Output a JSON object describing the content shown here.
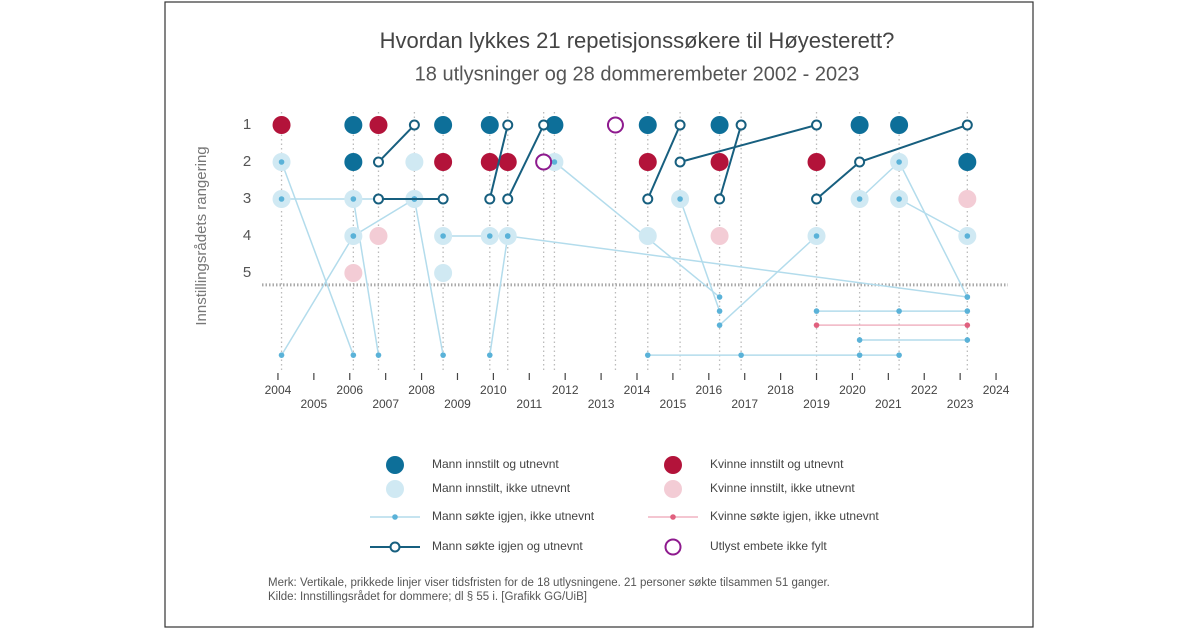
{
  "chart_data": {
    "type": "dot-timeline",
    "title": "Hvordan lykkes 21 repetisjonssøkere til Høyesterett?",
    "subtitle": "18 utlysninger og 28 dommerembeter 2002 - 2023",
    "y_label": "Innstillingsrådets rangering",
    "xlim": [
      2003.5,
      2024.5
    ],
    "xticks": [
      2004,
      2005,
      2006,
      2007,
      2008,
      2009,
      2010,
      2011,
      2012,
      2013,
      2014,
      2015,
      2016,
      2017,
      2018,
      2019,
      2020,
      2021,
      2022,
      2023,
      2024
    ],
    "ylim": [
      0.5,
      7.6
    ],
    "yticks": [
      1,
      2,
      3,
      4,
      5
    ],
    "deadlines": [
      2004.1,
      2006.1,
      2006.8,
      2007.8,
      2008.6,
      2009.9,
      2010.4,
      2011.4,
      2011.7,
      2013.4,
      2014.3,
      2015.2,
      2016.3,
      2016.9,
      2019.0,
      2020.2,
      2021.3,
      2023.2
    ],
    "rank_cutoff": 5.32,
    "series": [
      {
        "name": "Mann innstilt og utnevnt",
        "kind": "dot",
        "color": "#0d6f99",
        "x": [
          2006.1,
          2008.6,
          2009.9,
          2011.7,
          2014.3,
          2016.3,
          2020.2,
          2021.3,
          2006.1,
          2023.2
        ],
        "y": [
          1,
          1,
          1,
          1,
          1,
          1,
          1,
          1,
          2,
          2
        ]
      },
      {
        "name": "Kvinne innstilt og utnevnt",
        "kind": "dot",
        "color": "#b3133a",
        "x": [
          2004.1,
          2006.8,
          2008.6,
          2009.9,
          2010.4,
          2014.3,
          2016.3,
          2019.0
        ],
        "y": [
          1,
          1,
          2,
          2,
          2,
          2,
          2,
          2
        ]
      },
      {
        "name": "Mann innstilt, ikke utnevnt",
        "kind": "dot",
        "color": "#d0e9f3",
        "x": [
          2004.1,
          2007.8,
          2011.7,
          2021.3,
          2004.1,
          2006.1,
          2007.8,
          2015.2,
          2020.2,
          2021.3,
          2006.1,
          2008.6,
          2009.9,
          2010.4,
          2014.3,
          2019.0,
          2023.2,
          2008.6
        ],
        "y": [
          2,
          2,
          2,
          2,
          3,
          3,
          3,
          3,
          3,
          3,
          4,
          4,
          4,
          4,
          4,
          4,
          4,
          5
        ]
      },
      {
        "name": "Kvinne innstilt, ikke utnevnt",
        "kind": "dot",
        "color": "#f3ccd5",
        "x": [
          2006.8,
          2016.3,
          2006.1,
          2023.2
        ],
        "y": [
          4,
          4,
          5,
          3
        ]
      },
      {
        "name": "Mann søkte igjen, ikke utnevnt",
        "kind": "dot-line",
        "color": "#b3dcec",
        "dot_color": "#5ab2d8",
        "paths": [
          {
            "x": [
              2004.1,
              2006.1
            ],
            "y": [
              2,
              7.22
            ]
          },
          {
            "x": [
              2004.1,
              2007.8
            ],
            "y": [
              3,
              3
            ]
          },
          {
            "x": [
              2004.1,
              2006.1
            ],
            "y": [
              7.22,
              4
            ]
          },
          {
            "x": [
              2006.1,
              2006.8
            ],
            "y": [
              3,
              7.22
            ]
          },
          {
            "x": [
              2006.1,
              2007.8
            ],
            "y": [
              4,
              3
            ]
          },
          {
            "x": [
              2007.8,
              2008.6
            ],
            "y": [
              3,
              7.22
            ]
          },
          {
            "x": [
              2008.6,
              2009.9,
              2010.4,
              2023.2
            ],
            "y": [
              4,
              4,
              4,
              5.65
            ]
          },
          {
            "x": [
              2009.9,
              2010.4
            ],
            "y": [
              7.22,
              4
            ]
          },
          {
            "x": [
              2011.7,
              2016.3
            ],
            "y": [
              2,
              5.65
            ]
          },
          {
            "x": [
              2014.3,
              2016.9,
              2020.2,
              2021.3
            ],
            "y": [
              7.22,
              7.22,
              7.22,
              7.22
            ]
          },
          {
            "x": [
              2015.2,
              2016.3
            ],
            "y": [
              3,
              6.03
            ]
          },
          {
            "x": [
              2016.3,
              2019.0
            ],
            "y": [
              6.41,
              4
            ]
          },
          {
            "x": [
              2019.0,
              2021.3,
              2023.2
            ],
            "y": [
              6.03,
              6.03,
              6.03
            ]
          },
          {
            "x": [
              2020.2,
              2023.2
            ],
            "y": [
              6.81,
              6.81
            ]
          },
          {
            "x": [
              2020.2,
              2021.3,
              2023.2
            ],
            "y": [
              3,
              2,
              5.65
            ]
          },
          {
            "x": [
              2021.3,
              2023.2
            ],
            "y": [
              3,
              4
            ]
          }
        ]
      },
      {
        "name": "Kvinne søkte igjen, ikke utnevnt",
        "kind": "dot-line",
        "color": "#f0b4c2",
        "dot_color": "#e0607e",
        "paths": [
          {
            "x": [
              2019.0,
              2023.2
            ],
            "y": [
              6.41,
              6.41
            ]
          }
        ]
      },
      {
        "name": "Mann søkte igjen og utnevnt",
        "kind": "open-line",
        "color": "#175f7f",
        "paths": [
          {
            "x": [
              2006.8,
              2007.8
            ],
            "y": [
              2,
              1
            ]
          },
          {
            "x": [
              2006.8,
              2008.6
            ],
            "y": [
              3,
              3
            ]
          },
          {
            "x": [
              2009.9,
              2010.4
            ],
            "y": [
              3,
              1
            ]
          },
          {
            "x": [
              2010.4,
              2011.4
            ],
            "y": [
              3,
              1
            ]
          },
          {
            "x": [
              2014.3,
              2015.2
            ],
            "y": [
              3,
              1
            ]
          },
          {
            "x": [
              2015.2,
              2019.0
            ],
            "y": [
              2,
              1
            ]
          },
          {
            "x": [
              2016.3,
              2016.9
            ],
            "y": [
              3,
              1
            ]
          },
          {
            "x": [
              2019.0,
              2020.2,
              2023.2
            ],
            "y": [
              3,
              2,
              1
            ]
          }
        ]
      },
      {
        "name": "Utlyst embete ikke fylt",
        "kind": "open",
        "color": "#8e1a8e",
        "x": [
          2013.4,
          2011.4
        ],
        "y": [
          1,
          2
        ]
      }
    ],
    "notes": [
      "Merk: Vertikale, prikkede linjer viser tidsfristen for de 18 utlysningene. 21 personer søkte tilsammen 51 ganger.",
      "Kilde: Innstillingsrådet for dommere; dl § 55 i. [Grafikk GG/UiB]"
    ]
  }
}
